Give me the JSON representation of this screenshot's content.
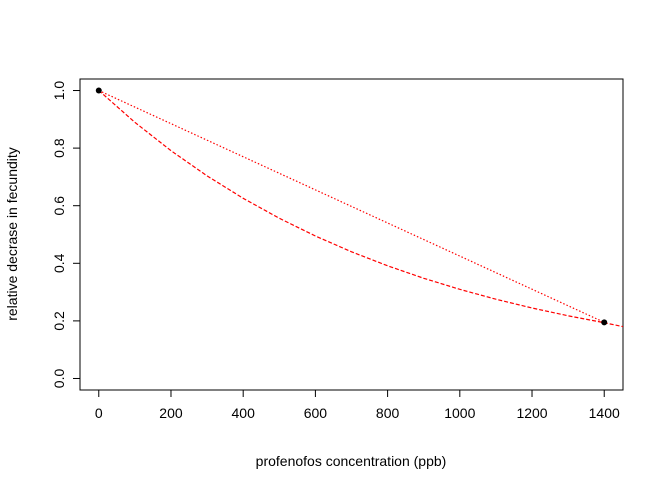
{
  "chart_data": {
    "type": "scatter",
    "title": "",
    "xlabel": "profenofos concentration (ppb)",
    "ylabel": "relative decrase in fecundity",
    "xlim": [
      -52,
      1452
    ],
    "ylim": [
      -0.04,
      1.04
    ],
    "x_ticks": [
      0,
      200,
      400,
      600,
      800,
      1000,
      1200,
      1400
    ],
    "y_ticks": [
      0.0,
      0.2,
      0.4,
      0.6,
      0.8,
      1.0
    ],
    "x_tick_labels": [
      "0",
      "200",
      "400",
      "600",
      "800",
      "1000",
      "1200",
      "1400"
    ],
    "y_tick_labels": [
      "0.0",
      "0.2",
      "0.4",
      "0.6",
      "0.8",
      "1.0"
    ],
    "grid": false,
    "points": [
      {
        "x": 0,
        "y": 1.0
      },
      {
        "x": 1400,
        "y": 0.195
      }
    ],
    "lines": [
      {
        "style": "dotted",
        "color": "#ff0000",
        "x": [
          0,
          1400
        ],
        "y": [
          1.0,
          0.195
        ]
      },
      {
        "style": "dashed",
        "color": "#ff0000",
        "x": [
          0,
          100,
          200,
          300,
          400,
          500,
          600,
          700,
          800,
          900,
          1000,
          1100,
          1200,
          1300,
          1400,
          1452
        ],
        "y": [
          1.0,
          0.8895,
          0.7911,
          0.7035,
          0.6257,
          0.5564,
          0.4948,
          0.44,
          0.3913,
          0.348,
          0.3095,
          0.2752,
          0.2448,
          0.2177,
          0.1936,
          0.18
        ]
      }
    ],
    "point_color": "#000000"
  }
}
